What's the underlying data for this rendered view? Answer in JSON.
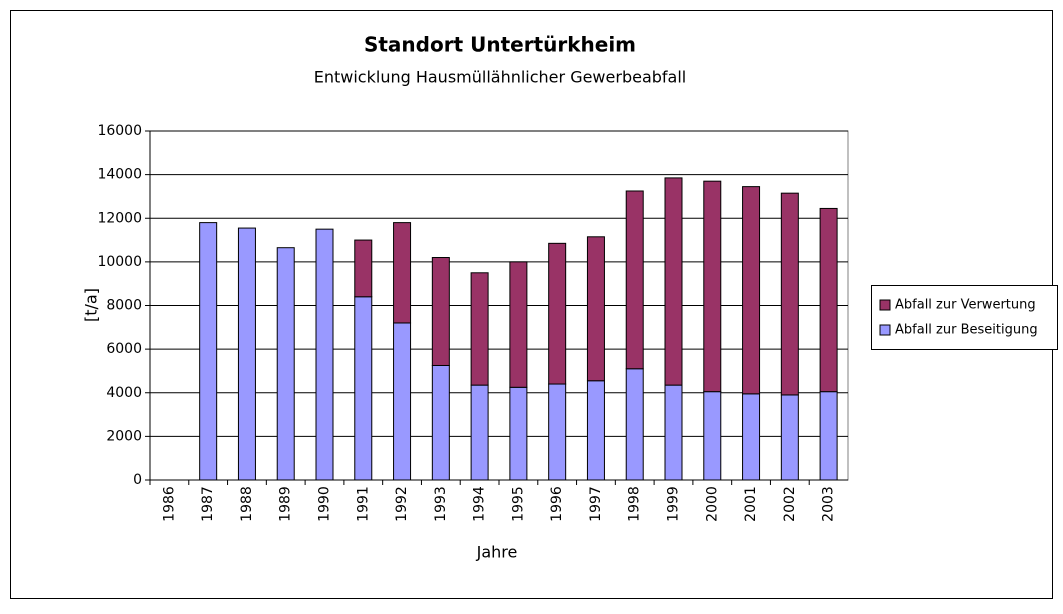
{
  "chart_data": {
    "type": "stacked_bar",
    "title": "Standort Untertürkheim",
    "subtitle": "Entwicklung Hausmüllähnlicher Gewerbeabfall",
    "x_label": "Jahre",
    "y_label": "[t/a]",
    "categories": [
      "1986",
      "1987",
      "1988",
      "1989",
      "1990",
      "1991",
      "1992",
      "1993",
      "1994",
      "1995",
      "1996",
      "1997",
      "1998",
      "1999",
      "2000",
      "2001",
      "2002",
      "2003"
    ],
    "series": [
      {
        "name": "Abfall zur Beseitigung",
        "color": "#9999ff",
        "values": [
          null,
          11800,
          11550,
          10650,
          11500,
          8400,
          7200,
          5250,
          4350,
          4250,
          4400,
          4550,
          5100,
          4350,
          4050,
          3950,
          3900,
          4050
        ]
      },
      {
        "name": "Abfall zur Verwertung",
        "color": "#993366",
        "values": [
          null,
          null,
          null,
          null,
          null,
          2600,
          4600,
          4950,
          5150,
          5750,
          6450,
          6600,
          8150,
          9500,
          9650,
          9500,
          9250,
          8400
        ]
      }
    ],
    "ylim": [
      0,
      16000
    ],
    "yticks": [
      0,
      2000,
      4000,
      6000,
      8000,
      10000,
      12000,
      14000,
      16000
    ],
    "grid": true,
    "legend": "right"
  }
}
